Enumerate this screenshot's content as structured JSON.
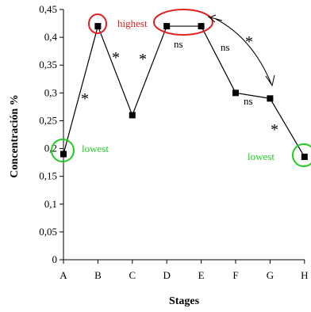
{
  "chart_data": {
    "type": "line",
    "xlabel": "Stages",
    "ylabel": "Concentración %",
    "categories": [
      "A",
      "B",
      "C",
      "D",
      "E",
      "F",
      "G",
      "H"
    ],
    "values": [
      0.19,
      0.42,
      0.26,
      0.42,
      0.42,
      0.3,
      0.29,
      0.185
    ],
    "ylim": [
      0,
      0.45
    ],
    "y_ticks": [
      {
        "value": 0,
        "label": "0"
      },
      {
        "value": 0.05,
        "label": "0,05"
      },
      {
        "value": 0.1,
        "label": "0,1"
      },
      {
        "value": 0.15,
        "label": "0,15"
      },
      {
        "value": 0.2,
        "label": "0,2"
      },
      {
        "value": 0.25,
        "label": "0,25"
      },
      {
        "value": 0.3,
        "label": "0,3"
      },
      {
        "value": 0.35,
        "label": "0,35"
      },
      {
        "value": 0.4,
        "label": "0,4"
      },
      {
        "value": 0.45,
        "label": "0,45"
      }
    ],
    "grid": false,
    "legend": "none",
    "line_color": "#000000",
    "annotations": {
      "highest": {
        "text": "highest",
        "color": "#e02020"
      },
      "lowest_a": {
        "text": "lowest",
        "color": "#22cc22"
      },
      "lowest_h": {
        "text": "lowest",
        "color": "#22cc22"
      },
      "ns_de": {
        "text": "ns"
      },
      "ns_ef": {
        "text": "ns"
      },
      "ns_fg": {
        "text": "ns"
      },
      "star_ab": {
        "text": "*"
      },
      "star_bc": {
        "text": "*"
      },
      "star_cd": {
        "text": "*"
      },
      "star_arrow": {
        "text": "*"
      },
      "star_gh": {
        "text": "*"
      }
    }
  }
}
